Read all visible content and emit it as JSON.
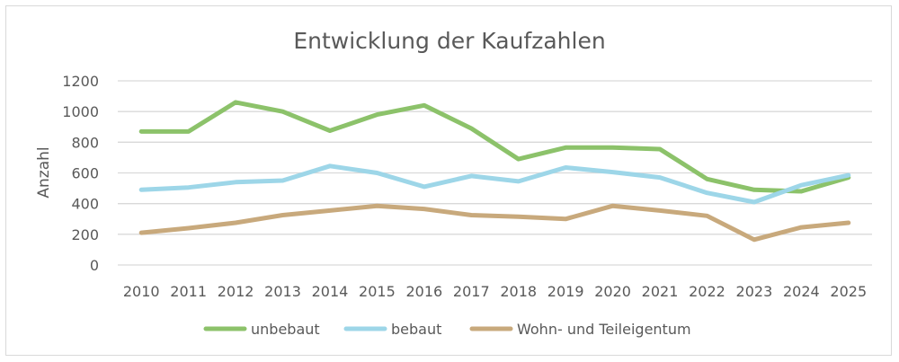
{
  "chart_data": {
    "type": "line",
    "title": "Entwicklung der Kaufzahlen",
    "xlabel": "",
    "ylabel": "Anzahl",
    "categories": [
      "2010",
      "2011",
      "2012",
      "2013",
      "2014",
      "2015",
      "2016",
      "2017",
      "2018",
      "2019",
      "2020",
      "2021",
      "2022",
      "2023",
      "2024",
      "2025"
    ],
    "ylim": [
      0,
      1200
    ],
    "yticks": [
      "0",
      "200",
      "400",
      "600",
      "800",
      "1000",
      "1200"
    ],
    "grid": true,
    "legend_position": "bottom",
    "series": [
      {
        "name": "unbebaut",
        "color": "#8cc26a",
        "values": [
          870,
          870,
          1060,
          1000,
          875,
          980,
          1040,
          890,
          690,
          765,
          765,
          755,
          560,
          490,
          480,
          570
        ]
      },
      {
        "name": "bebaut",
        "color": "#9dd6e8",
        "values": [
          490,
          505,
          540,
          550,
          645,
          600,
          510,
          580,
          545,
          635,
          605,
          570,
          470,
          410,
          520,
          585
        ]
      },
      {
        "name": "Wohn- und Teileigentum",
        "color": "#c8a97c",
        "values": [
          210,
          240,
          275,
          325,
          355,
          385,
          365,
          325,
          315,
          300,
          385,
          355,
          320,
          165,
          245,
          275
        ]
      }
    ]
  }
}
